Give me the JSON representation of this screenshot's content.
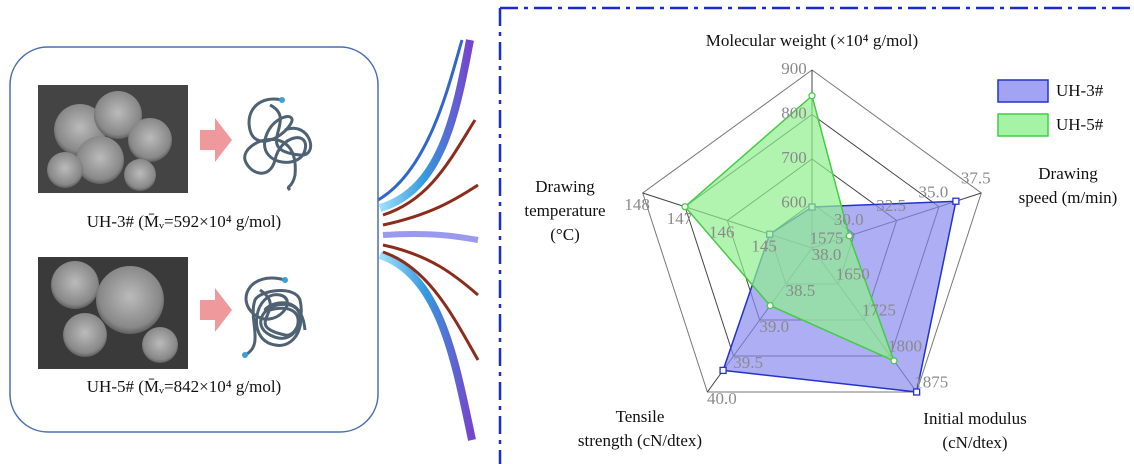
{
  "panels": [
    {
      "label": "UH-3# (M̄ᵥ=592×10⁴ g/mol)"
    },
    {
      "label": "UH-5# (M̄ᵥ=842×10⁴ g/mol)"
    }
  ],
  "chart_data": {
    "type": "radar",
    "axes": [
      {
        "name": [
          "Molecular weight (×10⁴ g/mol)"
        ],
        "lim": [
          500,
          900
        ],
        "ticks": [
          600,
          700,
          800,
          900
        ]
      },
      {
        "name": [
          "Drawing",
          "speed (m/min)"
        ],
        "lim": [
          27.5,
          37.5
        ],
        "ticks": [
          {
            "value": 30,
            "label": "30.0"
          },
          32.5,
          {
            "value": 35,
            "label": "35.0"
          },
          37.5
        ]
      },
      {
        "name": [
          "Initial modulus",
          "(cN/dtex)"
        ],
        "lim": [
          1575,
          1875
        ],
        "ticks": [
          1575,
          1650,
          1725,
          1800,
          1875
        ]
      },
      {
        "name": [
          "Tensile",
          "strength (cN/dtex)"
        ],
        "lim": [
          38,
          40
        ],
        "ticks": [
          {
            "value": 38,
            "label": "38.0"
          },
          38.5,
          {
            "value": 39,
            "label": "39.0"
          },
          39.5,
          {
            "value": 40,
            "label": "40.0"
          }
        ]
      },
      {
        "name": [
          "Drawing",
          "temperature",
          "(°C)"
        ],
        "lim": [
          144,
          148
        ],
        "ticks": [
          145,
          146,
          147,
          148
        ]
      }
    ],
    "series": [
      {
        "name": "UH-3#",
        "color": "#2233cc",
        "fill": "#8c8cf0",
        "values": [
          592,
          36,
          1875,
          39.7,
          145
        ]
      },
      {
        "name": "UH-5#",
        "color": "#44cc44",
        "fill": "#8ef08e",
        "values": [
          842,
          29.7,
          1810,
          38.8,
          147
        ]
      }
    ],
    "legend": "upper right",
    "grid": true
  }
}
